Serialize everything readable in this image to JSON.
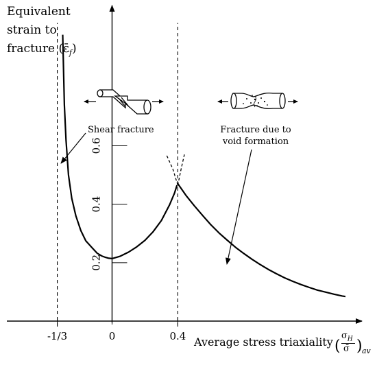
{
  "chart_data": {
    "type": "line",
    "ylabel": [
      "Equivalent",
      "strain to",
      "fracture"
    ],
    "ylabel_symbol": "(ε̄f)",
    "xlabel": "Average stress triaxiality",
    "xlabel_symbol": "(σH / σ̄)av",
    "x_ticks": [
      {
        "value": -0.3333,
        "label": "-1/3"
      },
      {
        "value": 0,
        "label": "0"
      },
      {
        "value": 0.4,
        "label": "0.4"
      }
    ],
    "y_ticks": [
      {
        "value": 0.2,
        "label": "0.2"
      },
      {
        "value": 0.4,
        "label": "0.4"
      },
      {
        "value": 0.6,
        "label": "0.6"
      }
    ],
    "xlim": [
      -0.64,
      1.52
    ],
    "ylim": [
      0.0,
      1.08
    ],
    "vertical_dashed_lines": [
      -0.3333,
      0.4
    ],
    "series": [
      {
        "x": [
          -0.3,
          -0.296,
          -0.29,
          -0.28,
          -0.265,
          -0.245,
          -0.22,
          -0.19,
          -0.16,
          -0.12,
          -0.09,
          -0.06,
          -0.04,
          -0.02,
          0.0,
          0.05,
          0.1,
          0.15,
          0.2,
          0.25,
          0.3,
          0.35,
          0.38,
          0.395
        ],
        "y": [
          0.98,
          0.88,
          0.74,
          0.62,
          0.5,
          0.42,
          0.36,
          0.31,
          0.275,
          0.25,
          0.232,
          0.222,
          0.218,
          0.215,
          0.214,
          0.222,
          0.236,
          0.254,
          0.276,
          0.306,
          0.344,
          0.398,
          0.438,
          0.465
        ]
      },
      {
        "x": [
          0.4,
          0.45,
          0.5,
          0.55,
          0.6,
          0.65,
          0.7,
          0.75,
          0.8,
          0.85,
          0.9,
          0.95,
          1.0,
          1.05,
          1.1,
          1.15,
          1.2,
          1.25,
          1.3,
          1.35,
          1.4,
          1.42
        ],
        "y": [
          0.47,
          0.43,
          0.395,
          0.362,
          0.33,
          0.302,
          0.277,
          0.253,
          0.232,
          0.212,
          0.194,
          0.177,
          0.162,
          0.148,
          0.136,
          0.125,
          0.115,
          0.106,
          0.099,
          0.092,
          0.086,
          0.084
        ]
      }
    ],
    "dashed_extensions": [
      {
        "x": [
          0.4,
          0.37,
          0.33
        ],
        "y": [
          0.465,
          0.52,
          0.57
        ]
      },
      {
        "x": [
          0.4,
          0.42,
          0.44
        ],
        "y": [
          0.465,
          0.52,
          0.57
        ]
      }
    ],
    "annotations": [
      {
        "text": "Shear fracture",
        "arrow_to": {
          "x": -0.29,
          "y": 0.6
        }
      },
      {
        "text": "Fracture due to void formation",
        "arrow_to": {
          "x": 0.74,
          "y": 0.257
        }
      }
    ]
  },
  "labels": {
    "y_axis_line1": "Equivalent",
    "y_axis_line2": "strain to",
    "y_axis_line3": "fracture",
    "y_axis_symbol": "(ε̄",
    "y_axis_symbol_sub": "f",
    "y_axis_symbol_close": ")",
    "x_axis_text": "Average stress triaxiality",
    "x_frac_num": "σ",
    "x_frac_num_sub": "H",
    "x_frac_den": "σ̄",
    "x_frac_sub": "av",
    "shear_label": "Shear fracture",
    "void_label_line1": "Fracture due to",
    "void_label_line2": "void formation"
  }
}
